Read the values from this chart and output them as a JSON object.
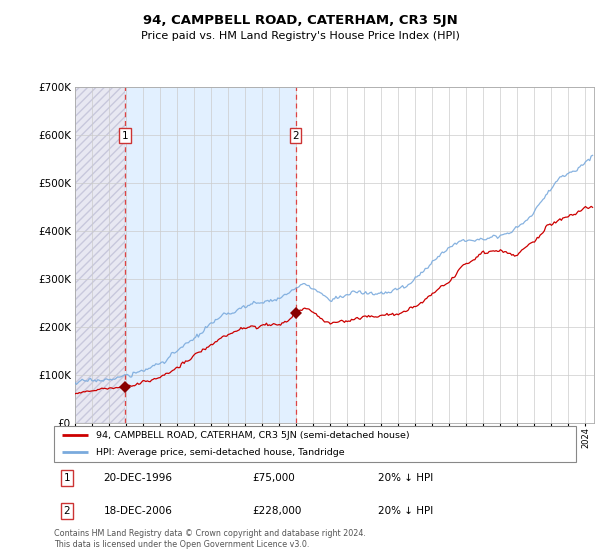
{
  "title": "94, CAMPBELL ROAD, CATERHAM, CR3 5JN",
  "subtitle": "Price paid vs. HM Land Registry's House Price Index (HPI)",
  "sale1_date": 1996.96,
  "sale1_price": 75000,
  "sale2_date": 2006.96,
  "sale2_price": 228000,
  "hpi_label": "HPI: Average price, semi-detached house, Tandridge",
  "prop_label": "94, CAMPBELL ROAD, CATERHAM, CR3 5JN (semi-detached house)",
  "legend1_text": "20-DEC-1996",
  "legend1_price": "£75,000",
  "legend1_hpi": "20% ↓ HPI",
  "legend2_text": "18-DEC-2006",
  "legend2_price": "£228,000",
  "legend2_hpi": "20% ↓ HPI",
  "footer": "Contains HM Land Registry data © Crown copyright and database right 2024.\nThis data is licensed under the Open Government Licence v3.0.",
  "hpi_color": "#7aaadd",
  "prop_color": "#cc0000",
  "marker_color": "#880000",
  "dashed_line_color": "#dd4444",
  "shade_color": "#ddeeff",
  "ylim_max": 700000,
  "xmin": 1994.0,
  "xmax": 2024.5,
  "hpi_anchors": {
    "1994.0": 83000,
    "1995.0": 88000,
    "1996.0": 91000,
    "1997.0": 97000,
    "1998.0": 108000,
    "1999.0": 125000,
    "2000.0": 148000,
    "2001.0": 175000,
    "2002.0": 205000,
    "2003.0": 228000,
    "2004.0": 242000,
    "2005.0": 252000,
    "2006.0": 260000,
    "2007.0": 278000,
    "2007.5": 290000,
    "2008.5": 268000,
    "2009.0": 258000,
    "2009.5": 262000,
    "2010.5": 272000,
    "2011.5": 268000,
    "2012.5": 272000,
    "2013.5": 285000,
    "2014.5": 315000,
    "2015.5": 355000,
    "2016.5": 375000,
    "2017.5": 385000,
    "2018.5": 388000,
    "2019.5": 395000,
    "2020.0": 405000,
    "2021.0": 440000,
    "2021.5": 465000,
    "2022.0": 490000,
    "2022.5": 510000,
    "2023.0": 520000,
    "2023.5": 530000,
    "2024.4": 555000
  },
  "prop_anchors": {
    "1994.0": 63000,
    "1995.0": 67000,
    "1996.0": 70000,
    "1996.96": 75000,
    "1997.5": 79000,
    "1998.5": 88000,
    "1999.5": 105000,
    "2000.5": 125000,
    "2001.5": 150000,
    "2002.5": 175000,
    "2003.5": 192000,
    "2004.5": 200000,
    "2005.5": 205000,
    "2006.5": 210000,
    "2006.96": 228000,
    "2007.5": 242000,
    "2008.5": 215000,
    "2009.0": 205000,
    "2009.5": 208000,
    "2010.5": 218000,
    "2011.0": 220000,
    "2012.0": 222000,
    "2013.0": 228000,
    "2014.0": 240000,
    "2015.0": 268000,
    "2016.0": 295000,
    "2017.0": 330000,
    "2018.0": 355000,
    "2019.0": 360000,
    "2020.0": 350000,
    "2021.0": 378000,
    "2022.0": 415000,
    "2023.0": 430000,
    "2024.0": 450000,
    "2024.4": 452000
  }
}
